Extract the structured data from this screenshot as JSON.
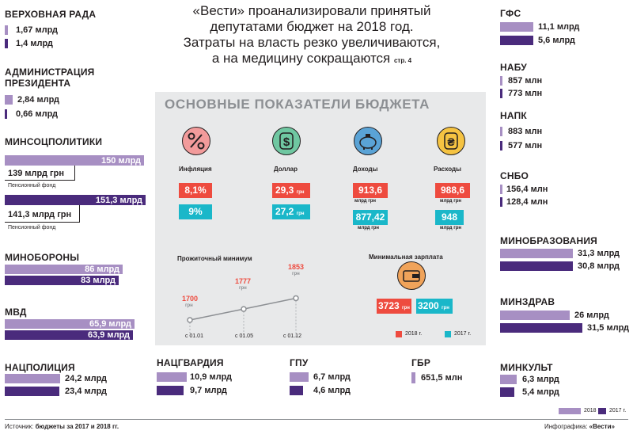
{
  "headline": {
    "l1": "«Вести» проанализировали принятый",
    "l2": "депутатами бюджет на 2018 год.",
    "l3": "Затраты на власть резко увеличиваются,",
    "l4": "а на медицину сокращаются",
    "page_ref": "стр. 4"
  },
  "colors": {
    "y2018": "#a78fc3",
    "y2017": "#4a2b7c",
    "red": "#ee4b3f",
    "cyan": "#1ab7c9",
    "panel": "#e8e9ea"
  },
  "chart_data": [
    {
      "type": "bar",
      "title": "Расходы ведомств",
      "series": [
        {
          "name": "2018 г.",
          "values": [
            1.67,
            2.84,
            150,
            86,
            65.9,
            24.2,
            10.9,
            6.7,
            651.5,
            11.1,
            857,
            883,
            156.4,
            31.3,
            26,
            6.3
          ]
        },
        {
          "name": "2017 г.",
          "values": [
            1.4,
            0.66,
            151.3,
            83,
            63.9,
            23.4,
            9.7,
            4.6,
            null,
            5.6,
            773,
            577,
            128.4,
            30.8,
            31.5,
            5.4
          ]
        }
      ],
      "categories": [
        "Верховная Рада",
        "Администрация Президента",
        "Минсоцполитики",
        "Минобороны",
        "МВД",
        "Нацполиция",
        "Нацгвардия",
        "ГПУ",
        "ГБР",
        "ГФС",
        "НАБУ",
        "НАПК",
        "СНБО",
        "Минобразования",
        "Минздрав",
        "Минкульт"
      ],
      "legend": "bottom-right"
    },
    {
      "type": "line",
      "title": "Прожиточный минимум",
      "x": [
        "с 01.01",
        "с 01.05",
        "с 01.12"
      ],
      "values": [
        1700,
        1777,
        1853
      ],
      "unit": "грн"
    }
  ],
  "ministries": {
    "rada": {
      "name": "Верховная Рада",
      "v18": "1,67 млрд",
      "v17": "1,4 млрд"
    },
    "admin": {
      "name1": "Администрация",
      "name2": "Президента",
      "v18": "2,84 млрд",
      "v17": "0,66 млрд"
    },
    "minsoc": {
      "name": "Минсоцполитики",
      "v18": "150 млрд",
      "pf18": "139 млрд грн",
      "pf_label": "Пенсионный фонд",
      "v17": "151,3 млрд",
      "pf17": "141,3 млрд грн"
    },
    "minob": {
      "name": "Минобороны",
      "v18": "86 млрд",
      "v17": "83 млрд"
    },
    "mvd": {
      "name": "МВД",
      "v18": "65,9 млрд",
      "v17": "63,9 млрд"
    },
    "natpol": {
      "name": "Нацполиция",
      "v18": "24,2 млрд",
      "v17": "23,4 млрд"
    },
    "natgv": {
      "name": "Нацгвардия",
      "v18": "10,9 млрд",
      "v17": "9,7 млрд"
    },
    "gpu": {
      "name": "ГПУ",
      "v18": "6,7 млрд",
      "v17": "4,6 млрд"
    },
    "gbr": {
      "name": "ГБР",
      "v18": "651,5 млн"
    },
    "gfs": {
      "name": "ГФС",
      "v18": "11,1 млрд",
      "v17": "5,6 млрд"
    },
    "nabu": {
      "name": "НАБУ",
      "v18": "857 млн",
      "v17": "773 млн"
    },
    "napk": {
      "name": "НАПК",
      "v18": "883 млн",
      "v17": "577 млн"
    },
    "snbo": {
      "name": "СНБО",
      "v18": "156,4 млн",
      "v17": "128,4 млн"
    },
    "minobr": {
      "name": "Минобразования",
      "v18": "31,3 млрд",
      "v17": "30,8 млрд"
    },
    "minzdrav": {
      "name": "Минздрав",
      "v18": "26 млрд",
      "v17": "31,5 млрд"
    },
    "minkult": {
      "name": "Минкульт",
      "v18": "6,3 млрд",
      "v17": "5,4 млрд"
    }
  },
  "budget": {
    "title": "Основные показатели бюджета",
    "inflation": {
      "label": "Инфляция",
      "icon": "percent-icon",
      "v18": "8,1%",
      "v17": "9%"
    },
    "dollar": {
      "label": "Доллар",
      "icon": "dollar-icon",
      "v18": "29,3",
      "v17": "27,2",
      "unit": "грн"
    },
    "income": {
      "label": "Доходы",
      "icon": "piggy-bank-icon",
      "v18": "913,6",
      "v17": "877,42",
      "unit": "млрд грн"
    },
    "expenses": {
      "label": "Расходы",
      "icon": "hryvnia-icon",
      "v18": "988,6",
      "v17": "948",
      "unit": "млрд грн"
    },
    "living_min": {
      "title": "Прожиточный минимум",
      "points": [
        {
          "value": "1700",
          "unit": "грн",
          "date": "с 01.01"
        },
        {
          "value": "1777",
          "unit": "грн",
          "date": "с 01.05"
        },
        {
          "value": "1853",
          "unit": "грн",
          "date": "с 01.12"
        }
      ]
    },
    "min_wage": {
      "title": "Минимальная зарплата",
      "v18": "3723",
      "v17": "3200",
      "unit": "грн"
    },
    "legend": {
      "y2018": "2018 г.",
      "y2017": "2017 г."
    }
  },
  "legend": {
    "y2018": "2018 г.",
    "y2017": "2017 г."
  },
  "footer": {
    "source_label": "Источник:",
    "source_value": "бюджеты за 2017 и 2018 гг.",
    "credit_label": "Инфографика:",
    "credit_value": "«Вести»"
  }
}
